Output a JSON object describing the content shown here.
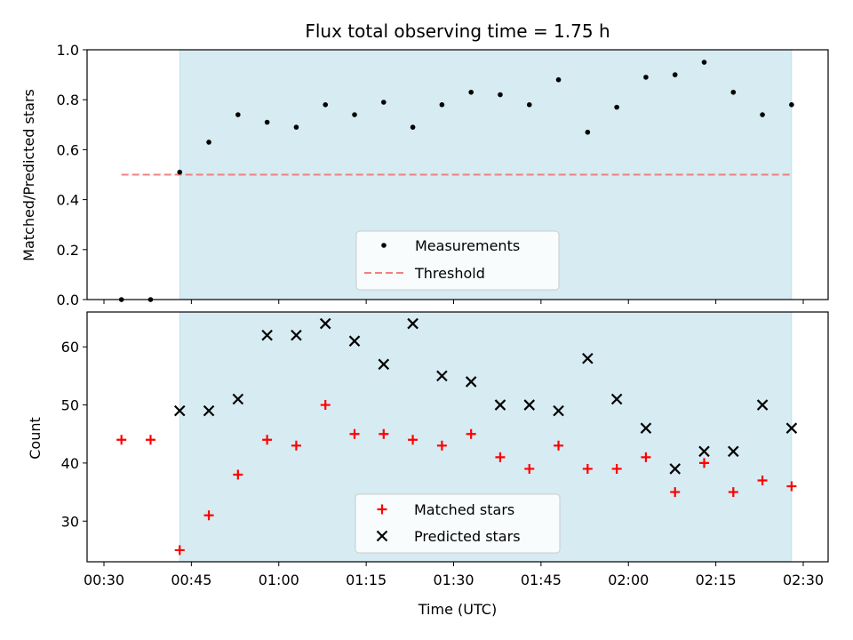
{
  "chart_data": [
    {
      "type": "scatter",
      "title": "Flux total observing time = 1.75 h",
      "ylabel": "Matched/Predicted stars",
      "ylim": [
        0,
        1.0
      ],
      "yticks": [
        "0.0",
        "0.2",
        "0.4",
        "0.6",
        "0.8",
        "1.0"
      ],
      "grid": false,
      "legend": "bottom-center",
      "shaded_span": {
        "start": "00:43",
        "end": "02:28",
        "color": "#add8e6"
      },
      "series": [
        {
          "name": "Measurements",
          "marker": "dot",
          "color": "#000000",
          "x": [
            "00:33",
            "00:38",
            "00:43",
            "00:48",
            "00:53",
            "00:58",
            "01:03",
            "01:08",
            "01:13",
            "01:18",
            "01:23",
            "01:28",
            "01:33",
            "01:38",
            "01:43",
            "01:48",
            "01:53",
            "01:58",
            "02:03",
            "02:08",
            "02:13",
            "02:18",
            "02:23",
            "02:28"
          ],
          "y": [
            0.0,
            0.0,
            0.51,
            0.63,
            0.74,
            0.71,
            0.69,
            0.78,
            0.74,
            0.79,
            0.69,
            0.78,
            0.83,
            0.82,
            0.78,
            0.88,
            0.67,
            0.77,
            0.89,
            0.9,
            0.95,
            0.83,
            0.74,
            0.78
          ]
        },
        {
          "name": "Threshold",
          "style": "dashed",
          "color": "#f08080",
          "x": [
            "00:33",
            "02:28"
          ],
          "y": [
            0.5,
            0.5
          ]
        }
      ]
    },
    {
      "type": "scatter",
      "xlabel": "Time (UTC)",
      "ylabel": "Count",
      "ylim": [
        23,
        66
      ],
      "yticks": [
        "30",
        "40",
        "50",
        "60"
      ],
      "xticks": [
        "00:30",
        "00:45",
        "01:00",
        "01:15",
        "01:30",
        "01:45",
        "02:00",
        "02:15",
        "02:30"
      ],
      "grid": false,
      "legend": "bottom-center",
      "series": [
        {
          "name": "Matched stars",
          "marker": "plus",
          "color": "#ff0000",
          "x": [
            "00:33",
            "00:38",
            "00:43",
            "00:48",
            "00:53",
            "00:58",
            "01:03",
            "01:08",
            "01:13",
            "01:18",
            "01:23",
            "01:28",
            "01:33",
            "01:38",
            "01:43",
            "01:48",
            "01:53",
            "01:58",
            "02:03",
            "02:08",
            "02:13",
            "02:18",
            "02:23",
            "02:28"
          ],
          "y": [
            44,
            44,
            25,
            31,
            38,
            44,
            43,
            50,
            45,
            45,
            44,
            43,
            45,
            41,
            39,
            43,
            39,
            39,
            41,
            35,
            40,
            35,
            37,
            36
          ]
        },
        {
          "name": "Predicted stars",
          "marker": "x",
          "color": "#000000",
          "x": [
            "00:43",
            "00:48",
            "00:53",
            "00:58",
            "01:03",
            "01:08",
            "01:13",
            "01:18",
            "01:23",
            "01:28",
            "01:33",
            "01:38",
            "01:43",
            "01:48",
            "01:53",
            "01:58",
            "02:03",
            "02:08",
            "02:13",
            "02:18",
            "02:23",
            "02:28"
          ],
          "y": [
            49,
            49,
            51,
            62,
            62,
            64,
            61,
            57,
            64,
            55,
            54,
            50,
            50,
            49,
            58,
            51,
            46,
            39,
            42,
            42,
            50,
            46
          ]
        }
      ]
    }
  ]
}
